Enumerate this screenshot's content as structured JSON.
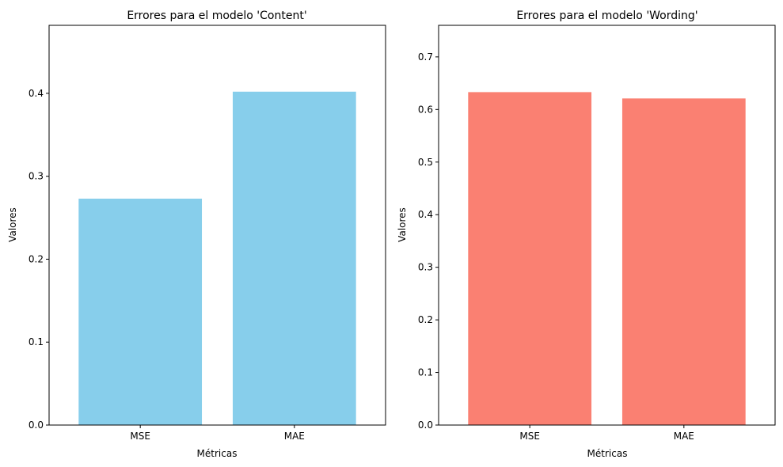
{
  "chart_data": [
    {
      "type": "bar",
      "title": "Errores para el modelo 'Content'",
      "xlabel": "Métricas",
      "ylabel": "Valores",
      "categories": [
        "MSE",
        "MAE"
      ],
      "values": [
        0.273,
        0.402
      ],
      "ylim": [
        0,
        0.482
      ],
      "yticks": [
        "0.0",
        "0.1",
        "0.2",
        "0.3",
        "0.4"
      ],
      "color": "#87CEEB",
      "grid": false
    },
    {
      "type": "bar",
      "title": "Errores para el modelo 'Wording'",
      "xlabel": "Métricas",
      "ylabel": "Valores",
      "categories": [
        "MSE",
        "MAE"
      ],
      "values": [
        0.633,
        0.621
      ],
      "ylim": [
        0,
        0.76
      ],
      "yticks": [
        "0.0",
        "0.1",
        "0.2",
        "0.3",
        "0.4",
        "0.5",
        "0.6",
        "0.7"
      ],
      "color": "#FA8072",
      "grid": false
    }
  ]
}
